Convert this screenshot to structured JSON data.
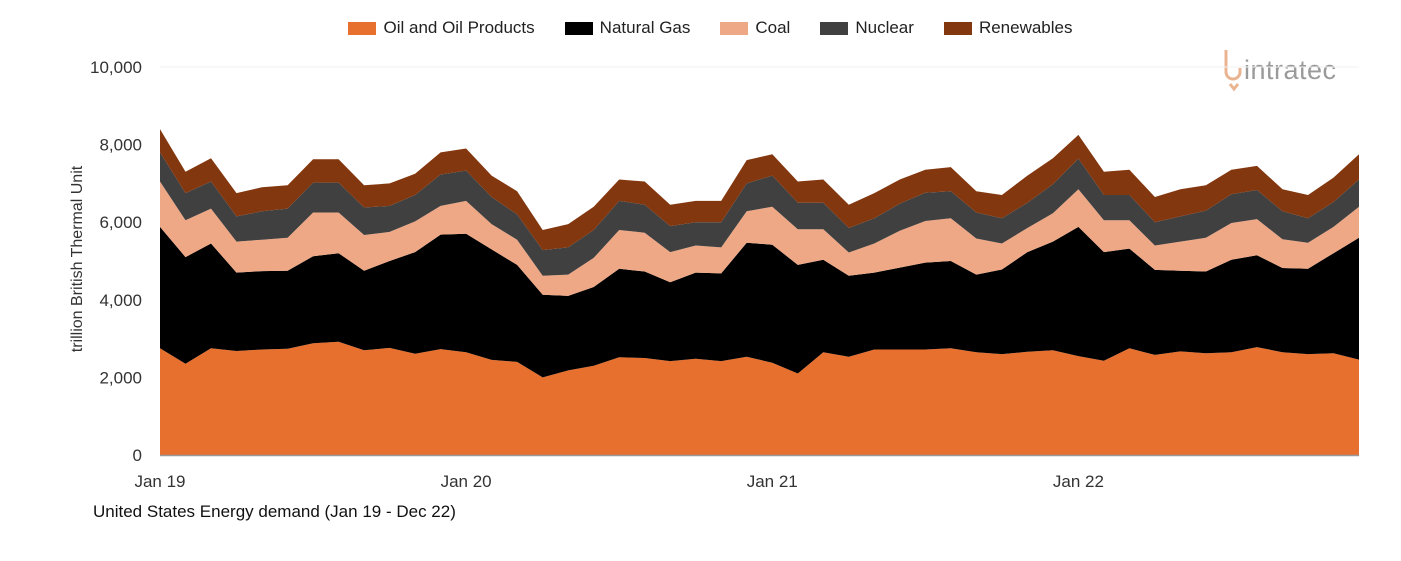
{
  "chart_data": {
    "type": "area",
    "stacked": true,
    "title": "United States Energy demand (Jan 19 - Dec 22)",
    "ylabel": "trillion British Thermal Unit",
    "xlabel": "",
    "ylim": [
      0,
      10000
    ],
    "y_ticks": [
      "0",
      "2,000",
      "4,000",
      "6,000",
      "8,000",
      "10,000"
    ],
    "y_tick_values": [
      0,
      2000,
      4000,
      6000,
      8000,
      10000
    ],
    "x_ticks": [
      "Jan 19",
      "Jan 20",
      "Jan 21",
      "Jan 22"
    ],
    "x_tick_indices": [
      0,
      12,
      24,
      36
    ],
    "grid": false,
    "legend_position": "top",
    "categories": [
      "Jan 19",
      "Feb 19",
      "Mar 19",
      "Apr 19",
      "May 19",
      "Jun 19",
      "Jul 19",
      "Aug 19",
      "Sep 19",
      "Oct 19",
      "Nov 19",
      "Dec 19",
      "Jan 20",
      "Feb 20",
      "Mar 20",
      "Apr 20",
      "May 20",
      "Jun 20",
      "Jul 20",
      "Aug 20",
      "Sep 20",
      "Oct 20",
      "Nov 20",
      "Dec 20",
      "Jan 21",
      "Feb 21",
      "Mar 21",
      "Apr 21",
      "May 21",
      "Jun 21",
      "Jul 21",
      "Aug 21",
      "Sep 21",
      "Oct 21",
      "Nov 21",
      "Dec 21",
      "Jan 22",
      "Feb 22",
      "Mar 22",
      "Apr 22",
      "May 22",
      "Jun 22",
      "Jul 22",
      "Aug 22",
      "Sep 22",
      "Oct 22",
      "Nov 22",
      "Dec 22"
    ],
    "series": [
      {
        "name": "Oil and Oil Products",
        "color": "#E8702F",
        "values": [
          2750,
          2350,
          2750,
          2680,
          2720,
          2740,
          2880,
          2920,
          2700,
          2760,
          2610,
          2730,
          2650,
          2450,
          2400,
          2000,
          2180,
          2300,
          2520,
          2500,
          2420,
          2480,
          2420,
          2530,
          2380,
          2100,
          2650,
          2530,
          2720,
          2720,
          2720,
          2750,
          2650,
          2600,
          2660,
          2700,
          2550,
          2430,
          2750,
          2580,
          2670,
          2620,
          2650,
          2780,
          2650,
          2600,
          2620,
          2460
        ]
      },
      {
        "name": "Natural Gas",
        "color": "#000000",
        "values": [
          3130,
          2750,
          2700,
          2020,
          2020,
          2010,
          2240,
          2280,
          2050,
          2240,
          2620,
          2950,
          3050,
          2850,
          2500,
          2130,
          1920,
          2030,
          2280,
          2230,
          2030,
          2220,
          2260,
          2940,
          3040,
          2800,
          2380,
          2090,
          1980,
          2110,
          2240,
          2250,
          2000,
          2180,
          2570,
          2800,
          3330,
          2800,
          2570,
          2190,
          2080,
          2110,
          2380,
          2370,
          2170,
          2200,
          2580,
          3140
        ]
      },
      {
        "name": "Coal",
        "color": "#EFA886",
        "values": [
          1170,
          950,
          900,
          800,
          810,
          850,
          1130,
          1050,
          920,
          750,
          790,
          740,
          850,
          650,
          650,
          490,
          550,
          750,
          1000,
          1000,
          780,
          700,
          670,
          810,
          980,
          920,
          790,
          600,
          750,
          950,
          1070,
          1100,
          930,
          670,
          620,
          730,
          970,
          820,
          730,
          630,
          750,
          870,
          950,
          930,
          740,
          670,
          680,
          800
        ]
      },
      {
        "name": "Nuclear",
        "color": "#404040",
        "values": [
          750,
          700,
          700,
          650,
          730,
          750,
          770,
          770,
          710,
          670,
          680,
          810,
          780,
          700,
          650,
          660,
          700,
          720,
          750,
          720,
          670,
          600,
          650,
          720,
          800,
          680,
          680,
          630,
          650,
          700,
          730,
          700,
          670,
          650,
          650,
          750,
          790,
          650,
          650,
          600,
          650,
          700,
          740,
          750,
          720,
          630,
          640,
          700
        ]
      },
      {
        "name": "Renewables",
        "color": "#83370F",
        "values": [
          600,
          550,
          600,
          600,
          620,
          600,
          600,
          600,
          570,
          580,
          550,
          570,
          570,
          550,
          600,
          520,
          600,
          600,
          550,
          600,
          550,
          550,
          550,
          600,
          550,
          550,
          600,
          600,
          650,
          620,
          590,
          620,
          550,
          600,
          700,
          670,
          610,
          600,
          650,
          650,
          700,
          650,
          630,
          620,
          570,
          600,
          630,
          650
        ]
      }
    ]
  },
  "logo": {
    "text": "intratec"
  }
}
